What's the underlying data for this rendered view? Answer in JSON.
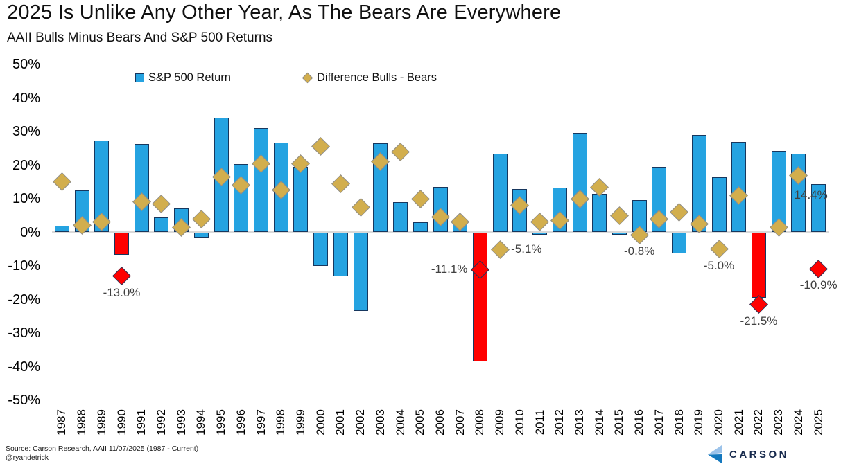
{
  "title": "2025 Is Unlike Any Other Year, As The Bears Are Everywhere",
  "subtitle": "AAII Bulls Minus Bears And S&P 500 Returns",
  "legend": {
    "bar_label": "S&P 500 Return",
    "diamond_label": "Difference Bulls - Bears"
  },
  "source": {
    "line1": "Source: Carson Research, AAII 11/07/2025 (1987 - Current)",
    "line2": "@ryandetrick"
  },
  "logo": {
    "text": "CARSON"
  },
  "colors": {
    "bar_blue": "#25A3E1",
    "bar_red": "#FF0000",
    "bar_border": "#17375E",
    "diamond_gold": "#D2AE4D",
    "diamond_gold_border": "#8C8C8C",
    "diamond_red": "#FF0000",
    "diamond_red_border": "#17375E",
    "zero_line": "#D9D9D9",
    "point_label": "#404040",
    "logo_navy": "#16294C",
    "logo_light_blue": "#9CC3EA",
    "logo_mid_blue": "#1478BE"
  },
  "chart_data": {
    "type": "bar",
    "subtype": "combo bar + diamond markers",
    "title": "2025 Is Unlike Any Other Year, As The Bears Are Everywhere",
    "subtitle": "AAII Bulls Minus Bears And S&P 500 Returns",
    "xlabel": "",
    "ylabel": "",
    "ylim": [
      -50,
      50
    ],
    "ytick_labels": [
      "50%",
      "40%",
      "30%",
      "20%",
      "10%",
      "0%",
      "-10%",
      "-20%",
      "-30%",
      "-40%",
      "-50%"
    ],
    "grid": false,
    "legend_position": "top",
    "categories": [
      1987,
      1988,
      1989,
      1990,
      1991,
      1992,
      1993,
      1994,
      1995,
      1996,
      1997,
      1998,
      1999,
      2000,
      2001,
      2002,
      2003,
      2004,
      2005,
      2006,
      2007,
      2008,
      2009,
      2010,
      2011,
      2012,
      2013,
      2014,
      2015,
      2016,
      2017,
      2018,
      2019,
      2020,
      2021,
      2022,
      2023,
      2024,
      2025
    ],
    "series": [
      {
        "name": "S&P 500 Return",
        "type": "bar",
        "values": [
          2.0,
          12.4,
          27.3,
          -6.6,
          26.3,
          4.5,
          7.1,
          -1.5,
          34.1,
          20.3,
          31.0,
          26.7,
          19.5,
          -10.1,
          -13.0,
          -23.4,
          26.4,
          9.0,
          3.0,
          13.6,
          3.5,
          -38.5,
          23.5,
          12.8,
          0.0,
          13.4,
          29.6,
          11.4,
          -0.7,
          9.5,
          19.4,
          -6.2,
          28.9,
          16.3,
          26.9,
          -19.4,
          24.2,
          23.3,
          14.4
        ]
      },
      {
        "name": "Difference Bulls - Bears",
        "type": "scatter-diamond",
        "values": [
          15.0,
          2.0,
          3.0,
          -13.0,
          9.0,
          8.5,
          1.5,
          4.0,
          16.5,
          14.0,
          20.5,
          12.5,
          20.5,
          25.5,
          14.5,
          7.5,
          21.0,
          24.0,
          10.0,
          4.5,
          3.0,
          -11.1,
          -5.1,
          8.0,
          3.0,
          3.5,
          10.0,
          13.5,
          5.0,
          -0.8,
          4.0,
          6.0,
          2.5,
          -5.0,
          11.0,
          -21.5,
          1.5,
          17.0,
          -10.9
        ]
      }
    ],
    "red_bar_years": [
      1990,
      2008,
      2022
    ],
    "red_diamond_years": [
      1990,
      2008,
      2022,
      2025
    ],
    "point_labels": [
      {
        "year": 1990,
        "text": "-13.0%",
        "placement": "below-diamond"
      },
      {
        "year": 2008,
        "text": "-11.1%",
        "placement": "left-of-diamond"
      },
      {
        "year": 2009,
        "text": "-5.1%",
        "placement": "right-of-diamond"
      },
      {
        "year": 2016,
        "text": "-0.8%",
        "placement": "below-diamond"
      },
      {
        "year": 2020,
        "text": "-5.0%",
        "placement": "below-diamond"
      },
      {
        "year": 2022,
        "text": "-21.5%",
        "placement": "below-diamond"
      },
      {
        "year": 2025,
        "text": "-10.9%",
        "placement": "below-diamond"
      },
      {
        "year": 2025,
        "text": "14.4%",
        "placement": "bar-top"
      }
    ]
  }
}
